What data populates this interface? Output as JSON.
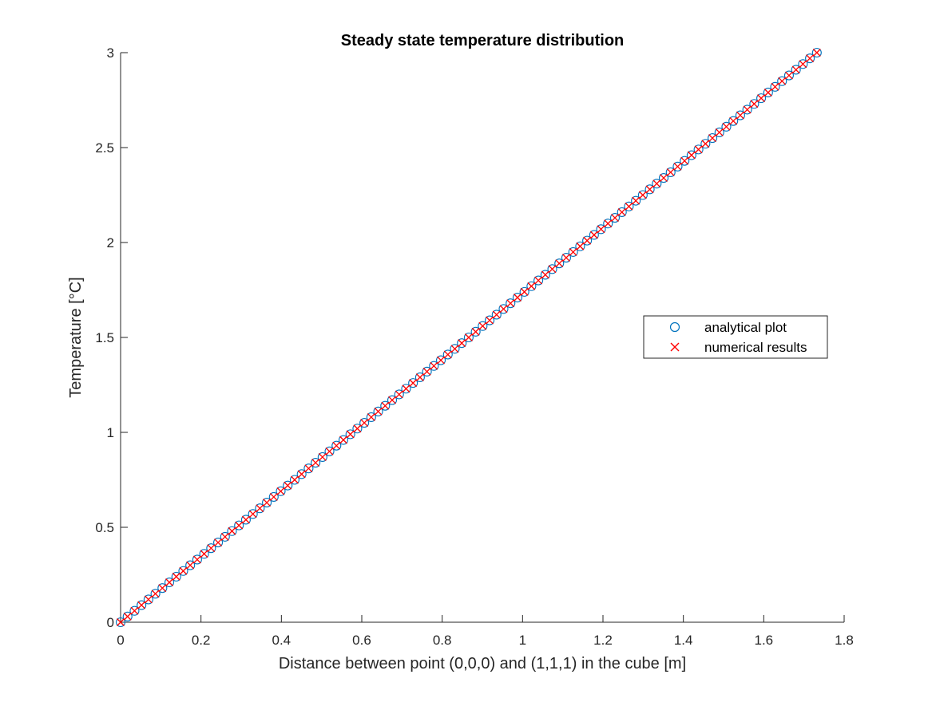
{
  "chart_data": {
    "type": "scatter",
    "title": "Steady state temperature distribution",
    "xlabel": "Distance between point (0,0,0) and (1,1,1) in the cube [m]",
    "ylabel": "Temperature [°C]",
    "xlim": [
      0,
      1.8
    ],
    "ylim": [
      0,
      3
    ],
    "xticks": [
      0,
      0.2,
      0.4,
      0.6,
      0.8,
      1,
      1.2,
      1.4,
      1.6,
      1.8
    ],
    "xtick_labels": [
      "0",
      "0.2",
      "0.4",
      "0.6",
      "0.8",
      "1",
      "1.2",
      "1.4",
      "1.6",
      "1.8"
    ],
    "yticks": [
      0,
      0.5,
      1,
      1.5,
      2,
      2.5,
      3
    ],
    "ytick_labels": [
      "0",
      "0.5",
      "1",
      "1.5",
      "2",
      "2.5",
      "3"
    ],
    "grid": false,
    "legend_position": "right",
    "x_start": 0,
    "x_end": 1.7321,
    "point_count": 101,
    "series": [
      {
        "name": "analytical plot",
        "marker": "circle",
        "color": "#0072BD",
        "relation": "y = 3 * x / 1.7321"
      },
      {
        "name": "numerical results",
        "marker": "x",
        "color": "#FF0000",
        "relation": "y = 3 * x / 1.7321"
      }
    ]
  }
}
